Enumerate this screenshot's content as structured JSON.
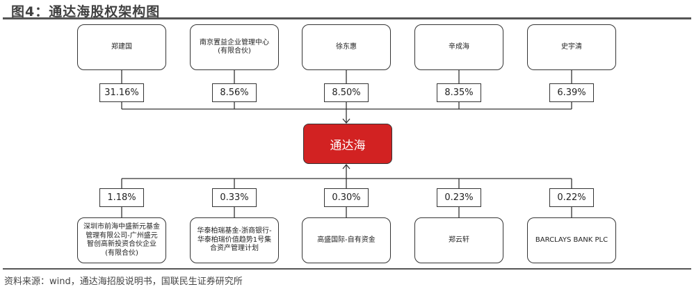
{
  "title": "图4：通达海股权架构图",
  "center": {
    "label": "通达海",
    "color": "#d22222"
  },
  "top": [
    {
      "name": "郑建国",
      "pct": "31.16%"
    },
    {
      "name": "南京置益企业管理中心(有限合伙)",
      "pct": "8.56%"
    },
    {
      "name": "徐东惠",
      "pct": "8.50%"
    },
    {
      "name": "辛成海",
      "pct": "8.35%"
    },
    {
      "name": "史宇清",
      "pct": "6.39%"
    }
  ],
  "bottom": [
    {
      "name": "深圳市前海中盛新元基金管理有限公司-广州盛元智创高新投资合伙企业(有限合伙)",
      "pct": "1.18%"
    },
    {
      "name": "华泰柏瑞基金-浙商银行-华泰柏瑞价值趋势1号集合资产管理计划",
      "pct": "0.33%"
    },
    {
      "name": "高盛国际-自有资金",
      "pct": "0.30%"
    },
    {
      "name": "郑云轩",
      "pct": "0.23%"
    },
    {
      "name": "BARCLAYS BANK PLC",
      "pct": "0.22%"
    }
  ],
  "source": "资料来源：wind，通达海招股说明书，国联民生证券研究所"
}
